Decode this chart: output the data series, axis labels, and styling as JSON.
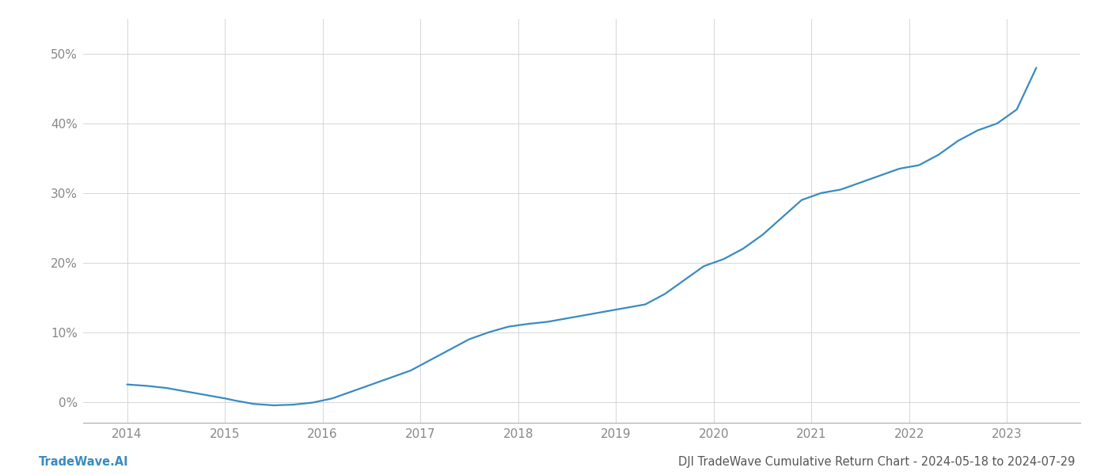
{
  "title": "DJI TradeWave Cumulative Return Chart - 2024-05-18 to 2024-07-29",
  "watermark": "TradeWave.AI",
  "line_color": "#3a8bbf",
  "background_color": "#ffffff",
  "grid_color": "#d0d0d0",
  "axis_color": "#aaaaaa",
  "x_years": [
    2014,
    2015,
    2016,
    2017,
    2018,
    2019,
    2020,
    2021,
    2022,
    2023
  ],
  "x_data": [
    2014.0,
    2014.2,
    2014.4,
    2014.6,
    2014.8,
    2015.0,
    2015.1,
    2015.3,
    2015.5,
    2015.7,
    2015.9,
    2016.1,
    2016.3,
    2016.5,
    2016.7,
    2016.9,
    2017.1,
    2017.3,
    2017.5,
    2017.7,
    2017.9,
    2018.1,
    2018.3,
    2018.5,
    2018.7,
    2018.9,
    2019.1,
    2019.3,
    2019.5,
    2019.7,
    2019.9,
    2020.1,
    2020.3,
    2020.5,
    2020.7,
    2020.9,
    2021.1,
    2021.3,
    2021.5,
    2021.7,
    2021.9,
    2022.1,
    2022.3,
    2022.5,
    2022.7,
    2022.9,
    2023.1,
    2023.3
  ],
  "y_data": [
    2.5,
    2.3,
    2.0,
    1.5,
    1.0,
    0.5,
    0.2,
    -0.3,
    -0.5,
    -0.4,
    -0.1,
    0.5,
    1.5,
    2.5,
    3.5,
    4.5,
    6.0,
    7.5,
    9.0,
    10.0,
    10.8,
    11.2,
    11.5,
    12.0,
    12.5,
    13.0,
    13.5,
    14.0,
    15.5,
    17.5,
    19.5,
    20.5,
    22.0,
    24.0,
    26.5,
    29.0,
    30.0,
    30.5,
    31.5,
    32.5,
    33.5,
    34.0,
    35.5,
    37.5,
    39.0,
    40.0,
    42.0,
    48.0
  ],
  "ylim": [
    -3,
    55
  ],
  "yticks": [
    0,
    10,
    20,
    30,
    40,
    50
  ],
  "xlim": [
    2013.55,
    2023.75
  ],
  "title_fontsize": 10.5,
  "watermark_fontsize": 10.5,
  "tick_fontsize": 11,
  "tick_color": "#888888",
  "line_width": 1.6
}
